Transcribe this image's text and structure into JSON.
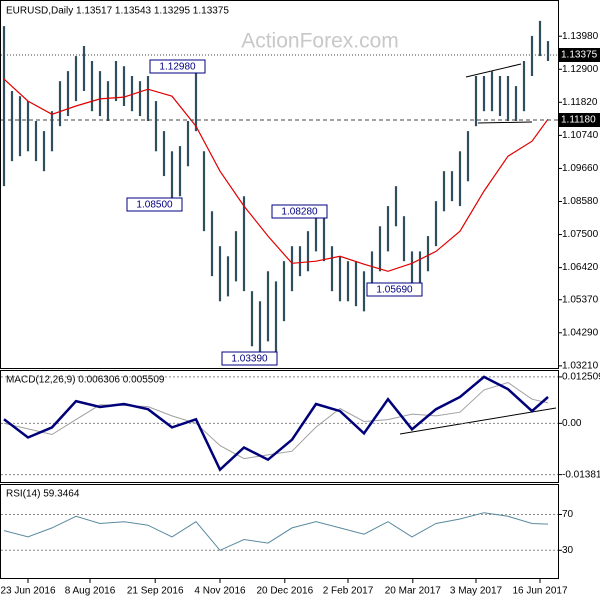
{
  "chart_data": [
    {
      "type": "price-bars",
      "title": "EURUSD,Daily  1.13517 1.13543 1.13295 1.13375",
      "watermark": "ActionForex.com",
      "color": "#2f4f5f",
      "x": [
        0,
        1,
        2,
        3,
        4,
        5,
        6,
        7,
        8,
        9,
        10,
        11,
        12,
        13,
        14,
        15,
        16,
        17,
        18,
        19,
        20,
        21,
        22,
        23,
        24,
        25,
        26,
        27,
        28,
        29,
        30,
        31,
        32,
        33,
        34,
        35,
        36,
        37,
        38,
        39,
        40,
        41,
        42,
        43,
        44,
        45,
        46,
        47,
        48,
        49,
        50,
        51,
        52,
        53,
        54,
        55,
        56,
        57,
        58,
        59,
        60,
        61,
        62,
        63,
        64,
        65,
        66,
        67,
        68
      ],
      "high": [
        1.1431,
        1.1219,
        1.1202,
        1.1186,
        1.1121,
        1.1088,
        1.1153,
        1.1251,
        1.1284,
        1.1333,
        1.1366,
        1.1317,
        1.1284,
        1.1251,
        1.1317,
        1.13,
        1.1268,
        1.1251,
        1.1268,
        1.1186,
        1.1088,
        1.1022,
        1.1039,
        1.1121,
        1.13,
        1.1022,
        1.0826,
        1.0712,
        1.0679,
        1.0761,
        1.0875,
        1.0565,
        1.0532,
        1.063,
        1.0597,
        1.0663,
        1.0712,
        1.0712,
        1.0761,
        1.0826,
        1.081,
        1.0712,
        1.0679,
        1.0663,
        1.0663,
        1.063,
        1.0695,
        1.0777,
        1.0843,
        1.0908,
        1.081,
        1.0695,
        1.0695,
        1.0745,
        1.0859,
        1.0957,
        1.0957,
        1.1022,
        1.1088,
        1.1268,
        1.1268,
        1.1284,
        1.1268,
        1.1268,
        1.1235,
        1.1317,
        1.1399,
        1.1448,
        1.1382
      ],
      "low": [
        1.0908,
        1.099,
        1.1006,
        1.1022,
        1.099,
        1.0957,
        1.1022,
        1.1104,
        1.1137,
        1.1186,
        1.1219,
        1.1153,
        1.1137,
        1.1121,
        1.1186,
        1.117,
        1.1153,
        1.1137,
        1.1121,
        1.1022,
        1.0941,
        1.0859,
        1.0875,
        1.0973,
        1.1088,
        1.0761,
        1.0614,
        1.0532,
        1.0548,
        1.0597,
        1.0565,
        1.0385,
        1.0368,
        1.0401,
        1.0352,
        1.0467,
        1.0565,
        1.0614,
        1.063,
        1.0695,
        1.0663,
        1.0565,
        1.0532,
        1.0532,
        1.0516,
        1.0499,
        1.0565,
        1.063,
        1.0695,
        1.0777,
        1.0663,
        1.0581,
        1.0565,
        1.063,
        1.0712,
        1.0826,
        1.0859,
        1.0843,
        1.0924,
        1.1104,
        1.1153,
        1.1153,
        1.1137,
        1.1121,
        1.1121,
        1.1153,
        1.1268,
        1.1333,
        1.1317
      ],
      "ma": {
        "color": "#e00000",
        "x": [
          0,
          3,
          6,
          9,
          12,
          15,
          18,
          21,
          24,
          27,
          30,
          33,
          36,
          39,
          42,
          45,
          48,
          51,
          54,
          57,
          60,
          63,
          66,
          68
        ],
        "values": [
          1.1258,
          1.1186,
          1.1143,
          1.117,
          1.1193,
          1.1199,
          1.1225,
          1.1202,
          1.1104,
          1.0957,
          1.0843,
          1.0745,
          1.0656,
          1.0663,
          1.0679,
          1.0653,
          1.063,
          1.0656,
          1.0695,
          1.0761,
          1.0892,
          1.1006,
          1.1055,
          1.1127
        ]
      },
      "xlim": [
        -0.5,
        69.25
      ],
      "xticks": [
        {
          "value": 3,
          "label": "23 Jun 2016"
        },
        {
          "value": 10.75,
          "label": "8 Aug 2016"
        },
        {
          "value": 18.9,
          "label": "21 Sep 2016"
        },
        {
          "value": 27,
          "label": "4 Nov 2016"
        },
        {
          "value": 35.1,
          "label": "20 Dec 2016"
        },
        {
          "value": 43,
          "label": "2 Feb 2017"
        },
        {
          "value": 51.1,
          "label": "20 Mar 2017"
        },
        {
          "value": 59,
          "label": "3 May 2017"
        },
        {
          "value": 67,
          "label": "16 Jun 2017"
        }
      ],
      "ylim": [
        1.0314,
        1.1513
      ],
      "yticks": [
        {
          "value": 1.1398,
          "label": "1.13980"
        },
        {
          "value": 1.129,
          "label": "1.12900"
        },
        {
          "value": 1.1182,
          "label": "1.11820"
        },
        {
          "value": 1.1074,
          "label": "1.10740"
        },
        {
          "value": 1.0966,
          "label": "1.09660"
        },
        {
          "value": 1.0858,
          "label": "1.08580"
        },
        {
          "value": 1.075,
          "label": "1.07500"
        },
        {
          "value": 1.0642,
          "label": "1.06420"
        },
        {
          "value": 1.0537,
          "label": "1.05370"
        },
        {
          "value": 1.0429,
          "label": "1.04290"
        },
        {
          "value": 1.0321,
          "label": "1.03210"
        }
      ],
      "annotations": [
        "1.12980",
        "1.08500",
        "1.08280",
        "1.05690",
        "1.03390"
      ],
      "price_labels": [
        "1.13375",
        "1.11180"
      ]
    },
    {
      "type": "line",
      "title": "MACD(12,26,9) 0.006306 0.005509",
      "x": [
        0,
        3,
        6,
        9,
        12,
        15,
        18,
        21,
        24,
        27,
        30,
        33,
        36,
        39,
        42,
        45,
        48,
        51,
        54,
        57,
        60,
        63,
        66,
        68
      ],
      "series": [
        {
          "color": "#00007a",
          "values": [
            0.0011,
            -0.0038,
            -0.0011,
            0.006,
            0.0044,
            0.0052,
            0.0038,
            -0.0011,
            0.0011,
            -0.0125,
            -0.0065,
            -0.0098,
            -0.0044,
            0.0052,
            0.0033,
            -0.0027,
            0.0065,
            -0.0016,
            0.0038,
            0.0071,
            0.0125,
            0.0092,
            0.0033,
            0.0071
          ]
        },
        {
          "color": "#a0a0a0",
          "values": [
            0,
            -0.0015,
            -0.003,
            0.001,
            0.005,
            0.0048,
            0.0045,
            0.002,
            0,
            -0.006,
            -0.0095,
            -0.0085,
            -0.0075,
            -0.001,
            0.004,
            0.0005,
            0.001,
            0.0025,
            0.002,
            0.003,
            0.009,
            0.011,
            0.0065,
            0.0055
          ]
        }
      ],
      "ylim": [
        -0.0158,
        0.0141
      ],
      "yticks": [
        0.012509,
        {
          "value": 0,
          "label": "0.00"
        },
        -0.013813
      ]
    },
    {
      "type": "line",
      "title": "RSI(14) 59.3464",
      "x": [
        0,
        3,
        6,
        9,
        12,
        15,
        18,
        21,
        24,
        27,
        30,
        33,
        36,
        39,
        42,
        45,
        48,
        51,
        54,
        57,
        60,
        63,
        66,
        68
      ],
      "series": [
        {
          "color": "#5a8aa0",
          "values": [
            52,
            45,
            55,
            68,
            60,
            62,
            58,
            45,
            62,
            30,
            42,
            38,
            55,
            62,
            55,
            48,
            62,
            45,
            60,
            65,
            72,
            68,
            60,
            59.3
          ]
        }
      ],
      "ylim": [
        -1,
        103
      ],
      "yticks": [
        70,
        30
      ]
    }
  ]
}
